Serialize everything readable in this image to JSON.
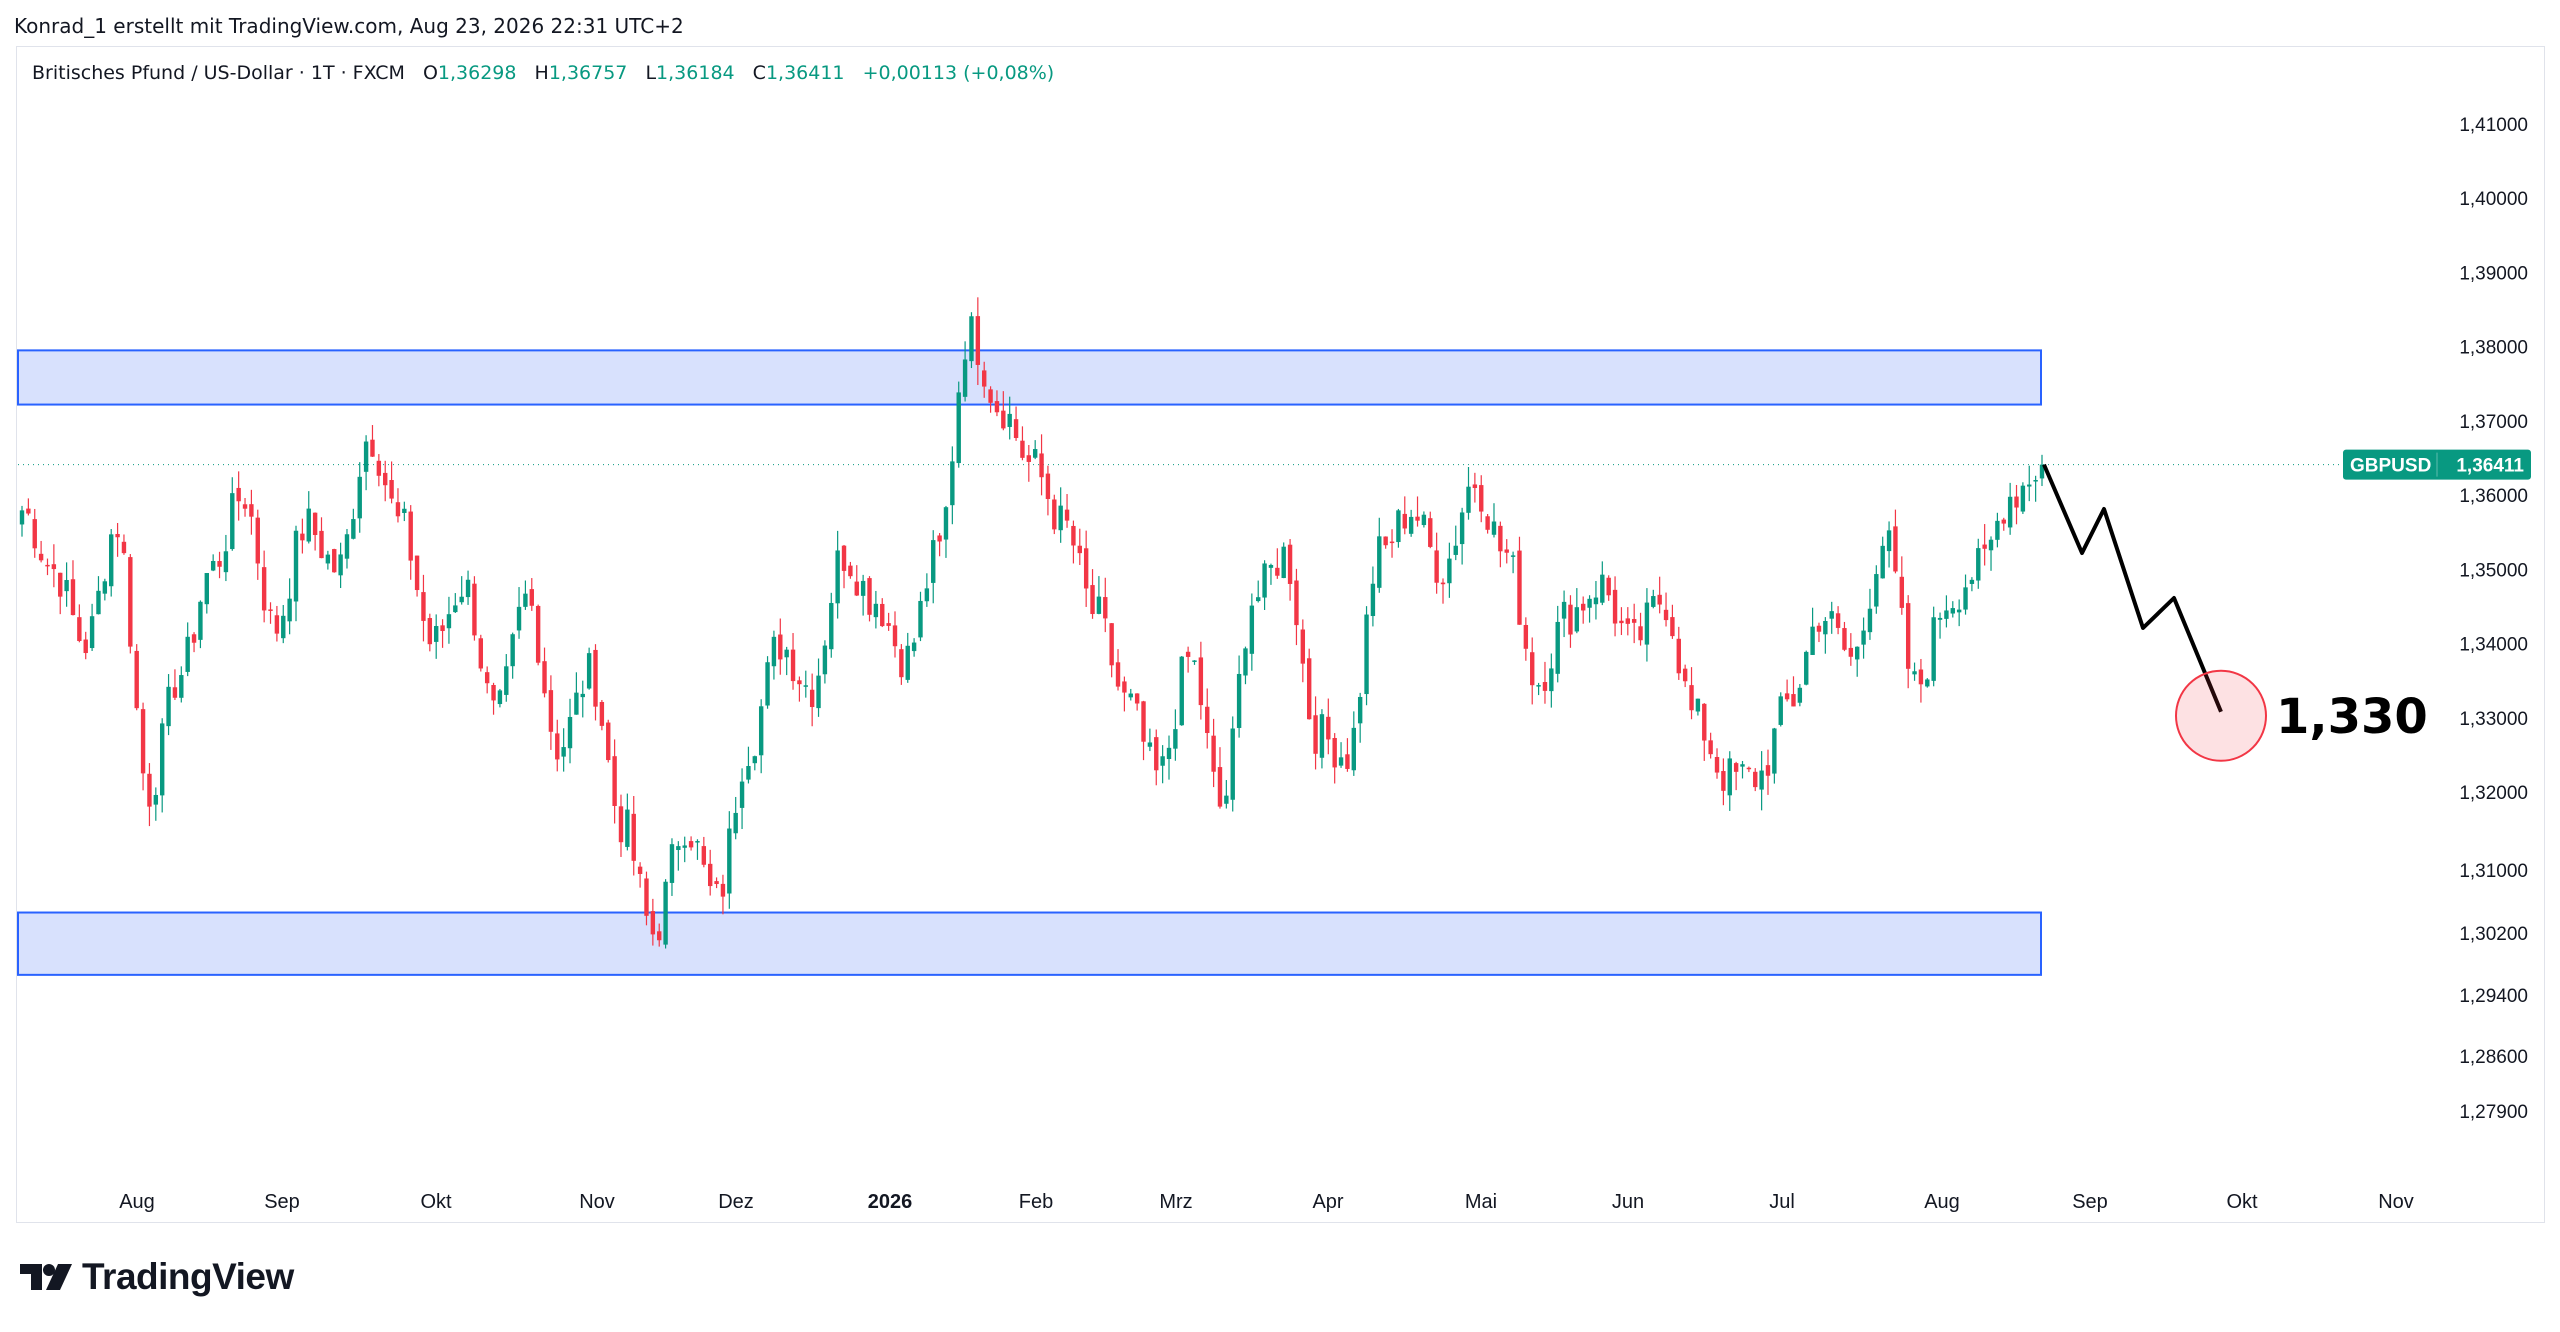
{
  "header": {
    "author_line": "Konrad_1 erstellt mit TradingView.com, Aug 23, 2026 22:31 UTC+2"
  },
  "legend": {
    "symbol": "Britisches Pfund / US-Dollar · 1T · FXCM",
    "open_label": "O",
    "open": "1,36298",
    "high_label": "H",
    "high": "1,36757",
    "low_label": "L",
    "low": "1,36184",
    "close_label": "C",
    "close": "1,36411",
    "change": "+0,00113 (+0,08%)"
  },
  "price_tag": {
    "ticker": "GBPUSD",
    "price": "1,36411",
    "color": "#089981"
  },
  "target_label": "1,330",
  "footer": {
    "brand": "TradingView"
  },
  "colors": {
    "up": "#089981",
    "down": "#f23645",
    "zone_fill": "#d4defd",
    "zone_border": "#2962ff",
    "target_circle": "#f23645"
  },
  "chart_data": {
    "type": "candlestick",
    "yaxis": {
      "ticks": [
        {
          "v": 1.41,
          "label": "1,41000"
        },
        {
          "v": 1.4,
          "label": "1,40000"
        },
        {
          "v": 1.39,
          "label": "1,39000"
        },
        {
          "v": 1.38,
          "label": "1,38000"
        },
        {
          "v": 1.37,
          "label": "1,37000"
        },
        {
          "v": 1.36,
          "label": "1,36000"
        },
        {
          "v": 1.35,
          "label": "1,35000"
        },
        {
          "v": 1.34,
          "label": "1,34000"
        },
        {
          "v": 1.33,
          "label": "1,33000"
        },
        {
          "v": 1.32,
          "label": "1,32000"
        },
        {
          "v": 1.31,
          "label": "1,31000"
        },
        {
          "v": 1.302,
          "label": "1,30200"
        },
        {
          "v": 1.294,
          "label": "1,29400"
        },
        {
          "v": 1.286,
          "label": "1,28600"
        },
        {
          "v": 1.279,
          "label": "1,27900"
        }
      ]
    },
    "xaxis": {
      "ticks": [
        {
          "label": "Aug",
          "bold": false
        },
        {
          "label": "Sep",
          "bold": false
        },
        {
          "label": "Okt",
          "bold": false
        },
        {
          "label": "Nov",
          "bold": false
        },
        {
          "label": "Dez",
          "bold": false
        },
        {
          "label": "2026",
          "bold": true
        },
        {
          "label": "Feb",
          "bold": false
        },
        {
          "label": "Mrz",
          "bold": false
        },
        {
          "label": "Apr",
          "bold": false
        },
        {
          "label": "Mai",
          "bold": false
        },
        {
          "label": "Jun",
          "bold": false
        },
        {
          "label": "Jul",
          "bold": false
        },
        {
          "label": "Aug",
          "bold": false
        },
        {
          "label": "Sep",
          "bold": false
        },
        {
          "label": "Okt",
          "bold": false
        },
        {
          "label": "Nov",
          "bold": false
        }
      ]
    },
    "zones": [
      {
        "name": "resistance",
        "top": 1.3795,
        "bottom": 1.3722
      },
      {
        "name": "support",
        "top": 1.3046,
        "bottom": 1.2966
      }
    ],
    "last_close": 1.36411,
    "target": 1.33,
    "anchors": [
      1.358,
      1.35,
      1.34,
      1.356,
      1.32,
      1.336,
      1.35,
      1.36,
      1.342,
      1.356,
      1.35,
      1.368,
      1.356,
      1.34,
      1.348,
      1.33,
      1.346,
      1.326,
      1.336,
      1.316,
      1.302,
      1.316,
      1.306,
      1.326,
      1.34,
      1.334,
      1.352,
      1.346,
      1.338,
      1.352,
      1.382,
      1.372,
      1.364,
      1.356,
      1.344,
      1.332,
      1.322,
      1.338,
      1.318,
      1.346,
      1.352,
      1.328,
      1.325,
      1.352,
      1.358,
      1.35,
      1.362,
      1.352,
      1.335,
      1.344,
      1.348,
      1.34,
      1.346,
      1.33,
      1.322,
      1.322,
      1.332,
      1.344,
      1.338,
      1.354,
      1.334,
      1.346,
      1.35,
      1.36,
      1.364
    ]
  }
}
